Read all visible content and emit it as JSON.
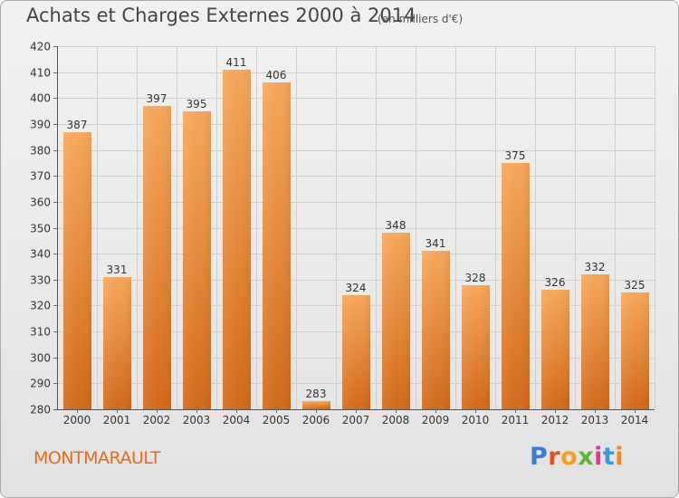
{
  "header": {
    "title": "Achats et Charges Externes 2000 à 2014",
    "subtitle": "(en milliers d'€)"
  },
  "footer": {
    "commune": "MONTMARAULT",
    "logo_letters": [
      "P",
      "r",
      "o",
      "x",
      "i",
      "t",
      "i"
    ]
  },
  "colors": {
    "bar_top": "#f6a75a",
    "bar_bottom": "#d2691b",
    "grid": "#cfcfcf",
    "commune": "#e86a1f"
  },
  "chart_data": {
    "type": "bar",
    "title": "Achats et Charges Externes 2000 à 2014",
    "subtitle": "(en milliers d'€)",
    "xlabel": "",
    "ylabel": "",
    "categories": [
      "2000",
      "2001",
      "2002",
      "2003",
      "2004",
      "2005",
      "2006",
      "2007",
      "2008",
      "2009",
      "2010",
      "2011",
      "2012",
      "2013",
      "2014"
    ],
    "values": [
      387,
      331,
      397,
      395,
      411,
      406,
      283,
      324,
      348,
      341,
      328,
      375,
      326,
      332,
      325
    ],
    "ylim": [
      280,
      420
    ],
    "yticks": [
      280,
      290,
      300,
      310,
      320,
      330,
      340,
      350,
      360,
      370,
      380,
      390,
      400,
      410,
      420
    ],
    "grid": true,
    "legend": "none"
  }
}
